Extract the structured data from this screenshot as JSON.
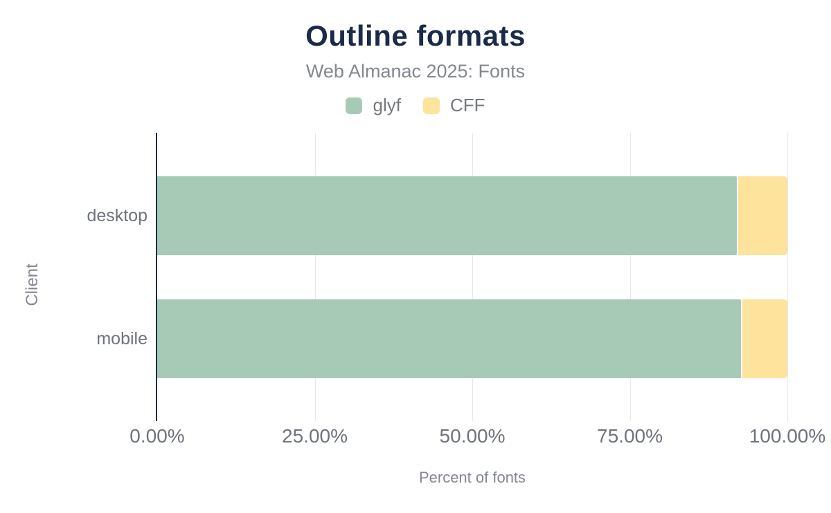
{
  "colors": {
    "title": "#1a2b49",
    "axis_line": "#1a2b49",
    "gridline": "#e8e8e8",
    "tick_text": "#6e737b",
    "muted_text": "#83878f",
    "legend_text": "#75797f",
    "background": "#ffffff"
  },
  "chart_data": {
    "type": "bar",
    "orientation": "horizontal",
    "stacked": true,
    "stack_unit": "percent",
    "title": "Outline formats",
    "subtitle": "Web Almanac 2025: Fonts",
    "xlabel": "Percent of fonts",
    "ylabel": "Client",
    "categories": [
      "desktop",
      "mobile"
    ],
    "series": [
      {
        "name": "glyf",
        "color": "#a7cab7",
        "values": [
          92.2,
          92.9
        ]
      },
      {
        "name": "CFF",
        "color": "#fde39b",
        "values": [
          7.8,
          7.1
        ]
      }
    ],
    "xlim": [
      0,
      100
    ],
    "x_ticks": [
      {
        "value": 0,
        "label": "0.00%"
      },
      {
        "value": 25,
        "label": "25.00%"
      },
      {
        "value": 50,
        "label": "50.00%"
      },
      {
        "value": 75,
        "label": "75.00%"
      },
      {
        "value": 100,
        "label": "100.00%"
      }
    ],
    "grid": true,
    "legend_position": "top"
  }
}
